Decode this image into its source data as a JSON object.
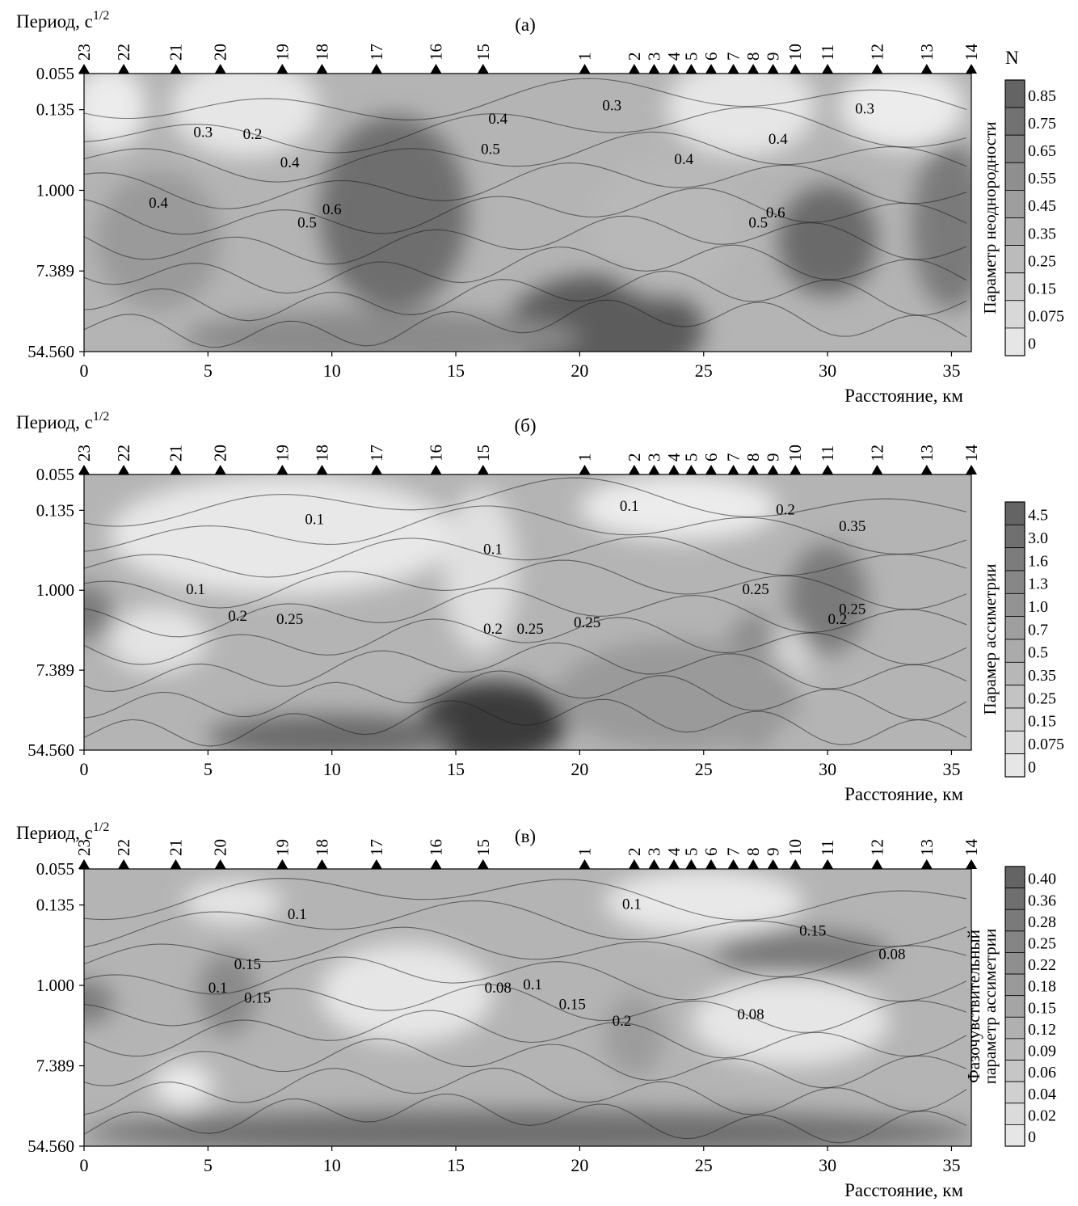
{
  "chart_data": [
    {
      "type": "heatmap",
      "panel_label": "(а)",
      "ylabel": "Период, с",
      "ylabel_sup": "1/2",
      "xlabel": "Расстояние, км",
      "xticks": [
        0,
        5,
        10,
        15,
        20,
        25,
        30,
        35
      ],
      "xlim": [
        0,
        35.8
      ],
      "yticks": [
        "0.055",
        "0.135",
        "1.000",
        "7.389",
        "54.560"
      ],
      "stations": [
        {
          "label": "23",
          "x": 0.0
        },
        {
          "label": "22",
          "x": 1.6
        },
        {
          "label": "21",
          "x": 3.7
        },
        {
          "label": "20",
          "x": 5.5
        },
        {
          "label": "19",
          "x": 8.0
        },
        {
          "label": "18",
          "x": 9.6
        },
        {
          "label": "17",
          "x": 11.8
        },
        {
          "label": "16",
          "x": 14.2
        },
        {
          "label": "15",
          "x": 16.1
        },
        {
          "label": "1",
          "x": 20.2
        },
        {
          "label": "2",
          "x": 22.2
        },
        {
          "label": "3",
          "x": 23.0
        },
        {
          "label": "4",
          "x": 23.8
        },
        {
          "label": "5",
          "x": 24.5
        },
        {
          "label": "6",
          "x": 25.3
        },
        {
          "label": "7",
          "x": 26.2
        },
        {
          "label": "8",
          "x": 27.0
        },
        {
          "label": "9",
          "x": 27.8
        },
        {
          "label": "10",
          "x": 28.7
        },
        {
          "label": "11",
          "x": 30.0
        },
        {
          "label": "12",
          "x": 32.0
        },
        {
          "label": "13",
          "x": 34.0
        },
        {
          "label": "14",
          "x": 35.8
        }
      ],
      "colorbar_title": "N",
      "colorbar_label": "Параметр неоднородности",
      "colorbar_ticks": [
        "0.85",
        "0.75",
        "0.65",
        "0.55",
        "0.45",
        "0.35",
        "0.25",
        "0.15",
        "0.075",
        "0"
      ],
      "contour_labels": [
        {
          "text": "0.3",
          "x": 4.8,
          "y": 0.95
        },
        {
          "text": "0.2",
          "x": 6.8,
          "y": 0.98
        },
        {
          "text": "0.4",
          "x": 3.0,
          "y": 2.0
        },
        {
          "text": "0.4",
          "x": 8.3,
          "y": 1.4
        },
        {
          "text": "0.5",
          "x": 9.0,
          "y": 2.3
        },
        {
          "text": "0.6",
          "x": 10.0,
          "y": 2.1
        },
        {
          "text": "0.4",
          "x": 16.7,
          "y": 0.75
        },
        {
          "text": "0.5",
          "x": 16.4,
          "y": 1.2
        },
        {
          "text": "0.3",
          "x": 21.3,
          "y": 0.55
        },
        {
          "text": "0.4",
          "x": 24.2,
          "y": 1.35
        },
        {
          "text": "0.4",
          "x": 28.0,
          "y": 1.05
        },
        {
          "text": "0.5",
          "x": 27.2,
          "y": 2.3
        },
        {
          "text": "0.6",
          "x": 27.9,
          "y": 2.15
        },
        {
          "text": "0.3",
          "x": 31.5,
          "y": 0.6
        }
      ]
    },
    {
      "type": "heatmap",
      "panel_label": "(б)",
      "ylabel": "Период, с",
      "ylabel_sup": "1/2",
      "xlabel": "Расстояние, км",
      "xticks": [
        0,
        5,
        10,
        15,
        20,
        25,
        30,
        35
      ],
      "xlim": [
        0,
        35.8
      ],
      "yticks": [
        "0.055",
        "0.135",
        "1.000",
        "7.389",
        "54.560"
      ],
      "stations": [
        {
          "label": "23",
          "x": 0.0
        },
        {
          "label": "22",
          "x": 1.6
        },
        {
          "label": "21",
          "x": 3.7
        },
        {
          "label": "20",
          "x": 5.5
        },
        {
          "label": "19",
          "x": 8.0
        },
        {
          "label": "18",
          "x": 9.6
        },
        {
          "label": "17",
          "x": 11.8
        },
        {
          "label": "16",
          "x": 14.2
        },
        {
          "label": "15",
          "x": 16.1
        },
        {
          "label": "1",
          "x": 20.2
        },
        {
          "label": "2",
          "x": 22.2
        },
        {
          "label": "3",
          "x": 23.0
        },
        {
          "label": "4",
          "x": 23.8
        },
        {
          "label": "5",
          "x": 24.5
        },
        {
          "label": "6",
          "x": 25.3
        },
        {
          "label": "7",
          "x": 26.2
        },
        {
          "label": "8",
          "x": 27.0
        },
        {
          "label": "9",
          "x": 27.8
        },
        {
          "label": "10",
          "x": 28.7
        },
        {
          "label": "11",
          "x": 30.0
        },
        {
          "label": "12",
          "x": 32.0
        },
        {
          "label": "13",
          "x": 34.0
        },
        {
          "label": "14",
          "x": 35.8
        }
      ],
      "colorbar_title": "",
      "colorbar_label": "Парамер ассиметрии",
      "colorbar_ticks": [
        "4.5",
        "3.0",
        "1.6",
        "1.3",
        "1.0",
        "0.7",
        "0.5",
        "0.35",
        "0.25",
        "0.15",
        "0.075",
        "0"
      ],
      "contour_labels": [
        {
          "text": "0.1",
          "x": 9.3,
          "y": 0.75
        },
        {
          "text": "0.1",
          "x": 4.5,
          "y": 1.8
        },
        {
          "text": "0.2",
          "x": 6.2,
          "y": 2.2
        },
        {
          "text": "0.25",
          "x": 8.3,
          "y": 2.25
        },
        {
          "text": "0.1",
          "x": 16.5,
          "y": 1.2
        },
        {
          "text": "0.2",
          "x": 16.5,
          "y": 2.4
        },
        {
          "text": "0.25",
          "x": 18.0,
          "y": 2.4
        },
        {
          "text": "0.25",
          "x": 20.3,
          "y": 2.3
        },
        {
          "text": "0.1",
          "x": 22.0,
          "y": 0.55
        },
        {
          "text": "0.2",
          "x": 28.3,
          "y": 0.6
        },
        {
          "text": "0.35",
          "x": 31.0,
          "y": 0.85
        },
        {
          "text": "0.25",
          "x": 27.1,
          "y": 1.8
        },
        {
          "text": "0.25",
          "x": 31.0,
          "y": 2.1
        },
        {
          "text": "0.2",
          "x": 30.4,
          "y": 2.25
        }
      ]
    },
    {
      "type": "heatmap",
      "panel_label": "(в)",
      "ylabel": "Период, с",
      "ylabel_sup": "1/2",
      "xlabel": "Расстояние, км",
      "xticks": [
        0,
        5,
        10,
        15,
        20,
        25,
        30,
        35
      ],
      "xlim": [
        0,
        35.8
      ],
      "yticks": [
        "0.055",
        "0.135",
        "1.000",
        "7.389",
        "54.560"
      ],
      "stations": [
        {
          "label": "23",
          "x": 0.0
        },
        {
          "label": "22",
          "x": 1.6
        },
        {
          "label": "21",
          "x": 3.7
        },
        {
          "label": "20",
          "x": 5.5
        },
        {
          "label": "19",
          "x": 8.0
        },
        {
          "label": "18",
          "x": 9.6
        },
        {
          "label": "17",
          "x": 11.8
        },
        {
          "label": "16",
          "x": 14.2
        },
        {
          "label": "15",
          "x": 16.1
        },
        {
          "label": "1",
          "x": 20.2
        },
        {
          "label": "2",
          "x": 22.2
        },
        {
          "label": "3",
          "x": 23.0
        },
        {
          "label": "4",
          "x": 23.8
        },
        {
          "label": "5",
          "x": 24.5
        },
        {
          "label": "6",
          "x": 25.3
        },
        {
          "label": "7",
          "x": 26.2
        },
        {
          "label": "8",
          "x": 27.0
        },
        {
          "label": "9",
          "x": 27.8
        },
        {
          "label": "10",
          "x": 28.7
        },
        {
          "label": "11",
          "x": 30.0
        },
        {
          "label": "12",
          "x": 32.0
        },
        {
          "label": "13",
          "x": 34.0
        },
        {
          "label": "14",
          "x": 35.8
        }
      ],
      "colorbar_title": "",
      "colorbar_label": "Фазочувствительный параметр ассиметрии",
      "colorbar_label_lines": [
        "Фазочувствительный",
        "параметр ассиметрии"
      ],
      "colorbar_ticks": [
        "0.40",
        "0.36",
        "0.28",
        "0.25",
        "0.22",
        "0.18",
        "0.15",
        "0.12",
        "0.09",
        "0.06",
        "0.04",
        "0.02",
        "0"
      ],
      "contour_labels": [
        {
          "text": "0.1",
          "x": 8.6,
          "y": 0.75
        },
        {
          "text": "0.15",
          "x": 6.6,
          "y": 1.5
        },
        {
          "text": "0.1",
          "x": 5.4,
          "y": 1.85
        },
        {
          "text": "0.15",
          "x": 7.0,
          "y": 2.0
        },
        {
          "text": "0.08",
          "x": 16.7,
          "y": 1.85
        },
        {
          "text": "0.1",
          "x": 18.1,
          "y": 1.8
        },
        {
          "text": "0.15",
          "x": 19.7,
          "y": 2.1
        },
        {
          "text": "0.2",
          "x": 21.7,
          "y": 2.35
        },
        {
          "text": "0.1",
          "x": 22.1,
          "y": 0.6
        },
        {
          "text": "0.15",
          "x": 29.4,
          "y": 1.0
        },
        {
          "text": "0.08",
          "x": 32.6,
          "y": 1.35
        },
        {
          "text": "0.08",
          "x": 26.9,
          "y": 2.25
        }
      ]
    }
  ]
}
